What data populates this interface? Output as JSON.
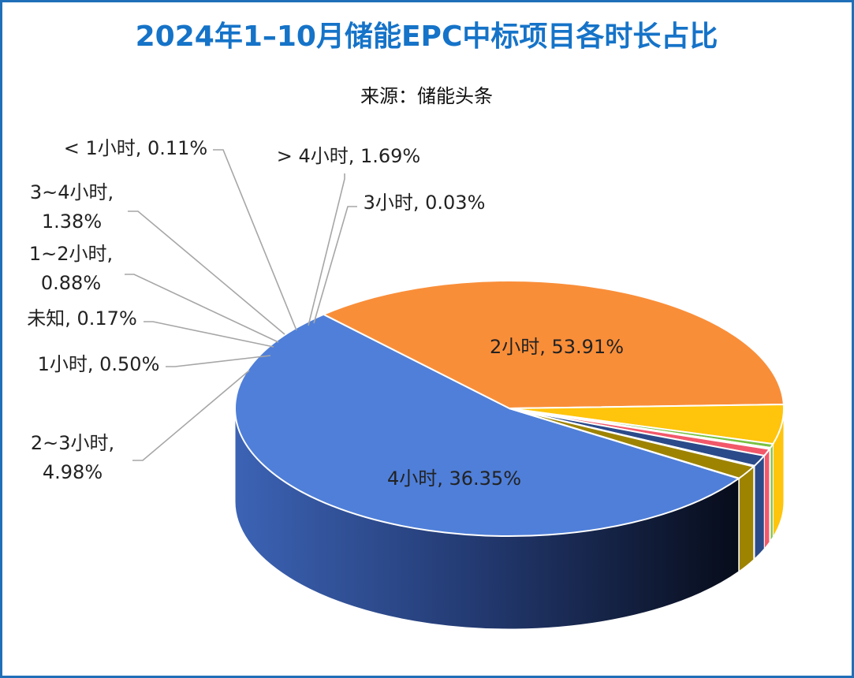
{
  "chart_data": {
    "type": "pie",
    "title": "2024年1–10月储能EPC中标项目各时长占比",
    "subtitle": "来源：储能头条",
    "legend": "none",
    "slices": [
      {
        "label": "2小时, 53.91%",
        "name": "2小时",
        "value": 53.91,
        "color": "#4f7fd9"
      },
      {
        "label": "4小时, 36.35%",
        "name": "4小时",
        "value": 36.35,
        "color": "#f98e39"
      },
      {
        "label": "2~3小时,",
        "label2": "4.98%",
        "name": "2~3小时",
        "value": 4.98,
        "color": "#ffc40c"
      },
      {
        "label": "1小时, 0.50%",
        "name": "1小时",
        "value": 0.5,
        "color": "#79c142"
      },
      {
        "label": "未知, 0.17%",
        "name": "未知",
        "value": 0.17,
        "color": "#5aa9e0"
      },
      {
        "label": "1~2小时,",
        "label2": "0.88%",
        "name": "1~2小时",
        "value": 0.88,
        "color": "#f2586a"
      },
      {
        "label": "3~4小时,",
        "label2": "1.38%",
        "name": "3~4小时",
        "value": 1.38,
        "color": "#2b4a8a"
      },
      {
        "label": "< 1小时, 0.11%",
        "name": "< 1小时",
        "value": 0.11,
        "color": "#7b4fa8"
      },
      {
        "label": "> 4小时, 1.69%",
        "name": "> 4小时",
        "value": 1.69,
        "color": "#9e8300"
      },
      {
        "label": "3小时, 0.03%",
        "name": "3小时",
        "value": 0.03,
        "color": "#6fd0c8"
      }
    ]
  }
}
